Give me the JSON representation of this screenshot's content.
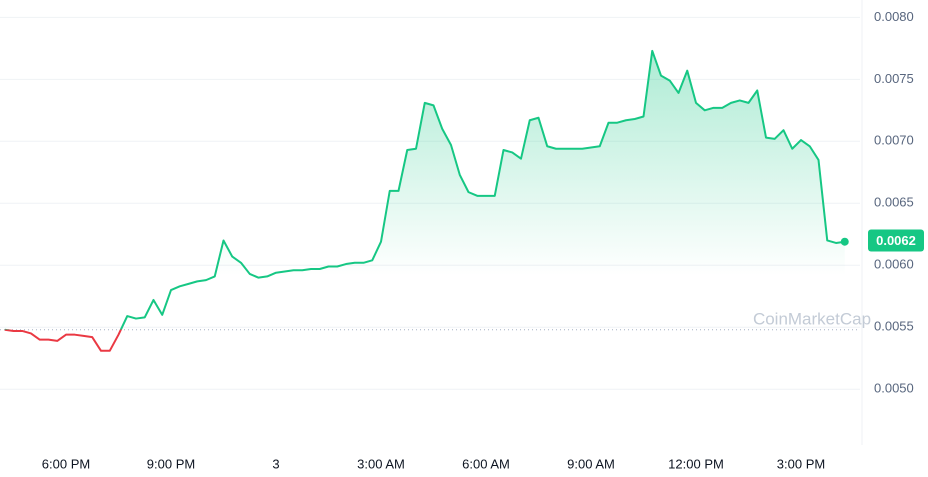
{
  "chart_data": {
    "type": "line",
    "watermark": "CoinMarketCap",
    "categories": [
      null,
      null,
      null,
      null,
      null,
      null,
      null,
      "6:00 PM",
      null,
      null,
      null,
      null,
      null,
      null,
      null,
      null,
      null,
      null,
      null,
      "9:00 PM",
      null,
      null,
      null,
      null,
      null,
      null,
      null,
      null,
      null,
      null,
      null,
      "3",
      null,
      null,
      null,
      null,
      null,
      null,
      null,
      null,
      null,
      null,
      null,
      "3:00 AM",
      null,
      null,
      null,
      null,
      null,
      null,
      null,
      null,
      null,
      null,
      null,
      "6:00 AM",
      null,
      null,
      null,
      null,
      null,
      null,
      null,
      null,
      null,
      null,
      null,
      "9:00 AM",
      null,
      null,
      null,
      null,
      null,
      null,
      null,
      null,
      null,
      null,
      null,
      "12:00 PM",
      null,
      null,
      null,
      null,
      null,
      null,
      null,
      null,
      null,
      null,
      null,
      "3:00 PM",
      null,
      null,
      null,
      null,
      null
    ],
    "values": [
      0.00548,
      0.00547,
      0.00547,
      0.00545,
      0.0054,
      0.0054,
      0.00539,
      0.00544,
      0.00544,
      0.00543,
      0.00542,
      0.00531,
      0.00531,
      0.00544,
      0.00559,
      0.00557,
      0.00558,
      0.00572,
      0.0056,
      0.0058,
      0.00583,
      0.00585,
      0.00587,
      0.00588,
      0.00591,
      0.0062,
      0.00607,
      0.00602,
      0.00593,
      0.0059,
      0.00591,
      0.00594,
      0.00595,
      0.00596,
      0.00596,
      0.00597,
      0.00597,
      0.00599,
      0.00599,
      0.00601,
      0.00602,
      0.00602,
      0.00604,
      0.00619,
      0.0066,
      0.0066,
      0.00693,
      0.00694,
      0.00731,
      0.00729,
      0.0071,
      0.00697,
      0.00673,
      0.00659,
      0.00656,
      0.00656,
      0.00656,
      0.00693,
      0.00691,
      0.00686,
      0.00717,
      0.00719,
      0.00696,
      0.00694,
      0.00694,
      0.00694,
      0.00694,
      0.00695,
      0.00696,
      0.00715,
      0.00715,
      0.00717,
      0.00718,
      0.0072,
      0.00773,
      0.00753,
      0.00749,
      0.00739,
      0.00757,
      0.00731,
      0.00725,
      0.00727,
      0.00727,
      0.00731,
      0.00733,
      0.00731,
      0.00741,
      0.00703,
      0.00702,
      0.00709,
      0.00694,
      0.00701,
      0.00696,
      0.00685,
      0.0062,
      0.00618,
      0.00619
    ],
    "color": "#16c784",
    "down_color": "#ea3943",
    "baseline": 0.00548,
    "current_price": 0.0062,
    "ylim": [
      0.00455,
      0.00814
    ],
    "yticks": [
      {
        "value": 0.008,
        "label": "0.0080"
      },
      0.0075,
      {
        "value": 0.007,
        "label": "0.0070"
      },
      0.0065,
      {
        "value": 0.006,
        "label": "0.0060"
      },
      0.0055,
      {
        "value": 0.005,
        "label": "0.0050"
      }
    ],
    "grid": true
  }
}
